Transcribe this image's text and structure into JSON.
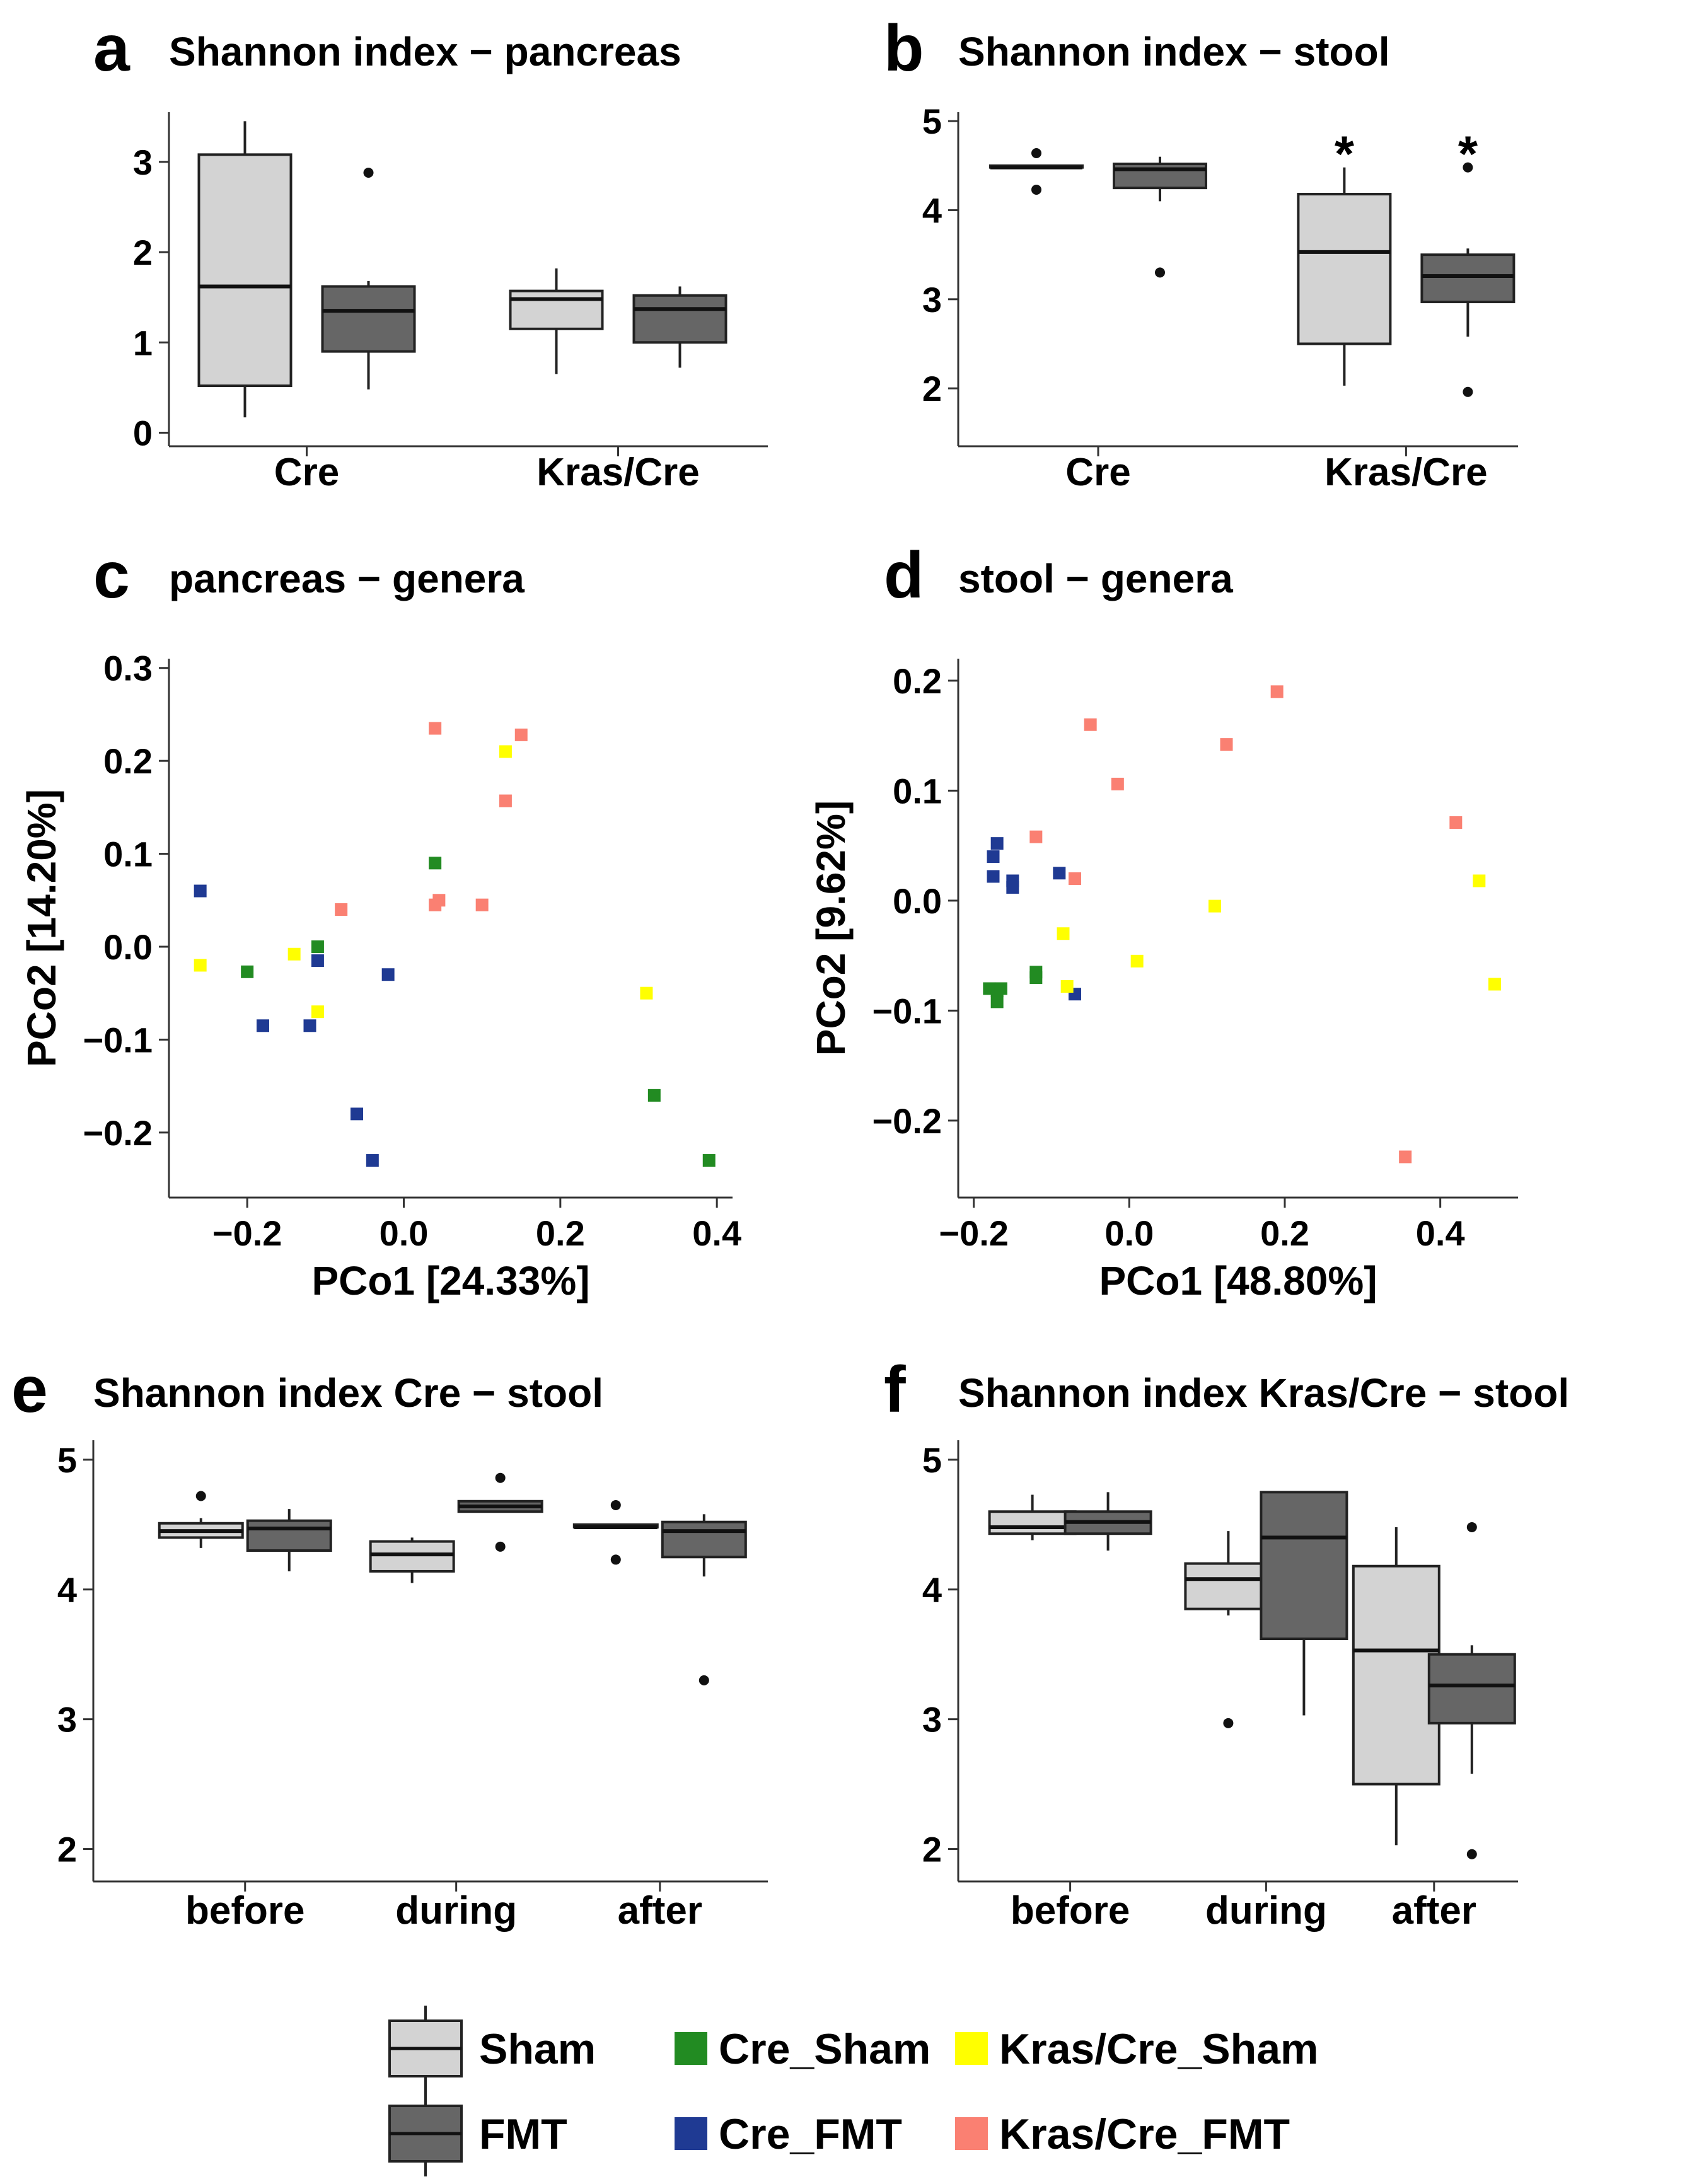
{
  "colors": {
    "sham_fill": "#d3d3d3",
    "fmt_fill": "#666666",
    "Cre_Sham": "#228b22",
    "Cre_FMT": "#1f3a93",
    "Kras/Cre_Sham": "#ffff00",
    "Kras/Cre_FMT": "#fa8072"
  },
  "legend": {
    "box_groups": [
      "Sham",
      "FMT"
    ],
    "point_groups": [
      "Cre_Sham",
      "Cre_FMT",
      "Kras/Cre_Sham",
      "Kras/Cre_FMT"
    ]
  },
  "chart_data": [
    {
      "id": "a",
      "panel_label": "a",
      "type": "boxplot",
      "title": "Shannon index − pancreas",
      "categories": [
        "Cre",
        "Kras/Cre"
      ],
      "ylim": [
        -0.15,
        3.55
      ],
      "yticks": [
        0,
        1,
        2,
        3
      ],
      "series": [
        {
          "name": "Sham",
          "boxes": [
            {
              "category": "Cre",
              "min": 0.17,
              "q1": 0.52,
              "median": 1.62,
              "q3": 3.08,
              "max": 3.45,
              "outliers": []
            },
            {
              "category": "Kras/Cre",
              "min": 0.65,
              "q1": 1.15,
              "median": 1.48,
              "q3": 1.57,
              "max": 1.82,
              "outliers": []
            }
          ]
        },
        {
          "name": "FMT",
          "boxes": [
            {
              "category": "Cre",
              "min": 0.48,
              "q1": 0.9,
              "median": 1.35,
              "q3": 1.62,
              "max": 1.68,
              "outliers": [
                2.88
              ]
            },
            {
              "category": "Kras/Cre",
              "min": 0.72,
              "q1": 1.0,
              "median": 1.37,
              "q3": 1.52,
              "max": 1.62,
              "outliers": []
            }
          ]
        }
      ],
      "annotations": []
    },
    {
      "id": "b",
      "panel_label": "b",
      "type": "boxplot",
      "title": "Shannon index − stool",
      "categories": [
        "Cre",
        "Kras/Cre"
      ],
      "ylim": [
        1.35,
        5.1
      ],
      "yticks": [
        2,
        3,
        4,
        5
      ],
      "series": [
        {
          "name": "Sham",
          "boxes": [
            {
              "category": "Cre",
              "min": 4.48,
              "q1": 4.48,
              "median": 4.48,
              "q3": 4.5,
              "max": 4.5,
              "outliers": [
                4.64,
                4.23
              ]
            },
            {
              "category": "Kras/Cre",
              "min": 2.03,
              "q1": 2.5,
              "median": 3.53,
              "q3": 4.18,
              "max": 4.48,
              "outliers": []
            }
          ]
        },
        {
          "name": "FMT",
          "boxes": [
            {
              "category": "Cre",
              "min": 4.1,
              "q1": 4.25,
              "median": 4.46,
              "q3": 4.52,
              "max": 4.6,
              "outliers": [
                3.3
              ]
            },
            {
              "category": "Kras/Cre",
              "min": 2.58,
              "q1": 2.97,
              "median": 3.26,
              "q3": 3.5,
              "max": 3.57,
              "outliers": [
                4.48,
                1.96
              ]
            }
          ]
        }
      ],
      "annotations": [
        {
          "category": "Kras/Cre",
          "group": "Sham",
          "text": "*",
          "value": 4.72
        },
        {
          "category": "Kras/Cre",
          "group": "FMT",
          "text": "*",
          "value": 4.72
        }
      ]
    },
    {
      "id": "c",
      "panel_label": "c",
      "type": "scatter",
      "title": "pancreas − genera",
      "xlabel": "PCo1 [24.33%]",
      "ylabel": "PCo2 [14.20%]",
      "xlim": [
        -0.3,
        0.42
      ],
      "ylim": [
        -0.27,
        0.31
      ],
      "xticks": [
        -0.2,
        0.0,
        0.2,
        0.4
      ],
      "yticks": [
        -0.2,
        -0.1,
        0.0,
        0.1,
        0.2,
        0.3
      ],
      "series": [
        {
          "name": "Cre_Sham",
          "points": [
            [
              0.04,
              0.09
            ],
            [
              -0.2,
              -0.027
            ],
            [
              -0.11,
              0.0
            ],
            [
              0.32,
              -0.16
            ],
            [
              0.39,
              -0.23
            ]
          ]
        },
        {
          "name": "Cre_FMT",
          "points": [
            [
              -0.26,
              0.06
            ],
            [
              -0.11,
              -0.015
            ],
            [
              -0.02,
              -0.03
            ],
            [
              -0.18,
              -0.085
            ],
            [
              -0.12,
              -0.085
            ],
            [
              -0.06,
              -0.18
            ],
            [
              -0.04,
              -0.23
            ]
          ]
        },
        {
          "name": "Kras/Cre_Sham",
          "points": [
            [
              -0.26,
              -0.02
            ],
            [
              -0.14,
              -0.008
            ],
            [
              -0.11,
              -0.07
            ],
            [
              0.13,
              0.21
            ],
            [
              0.31,
              -0.05
            ]
          ]
        },
        {
          "name": "Kras/Cre_FMT",
          "points": [
            [
              0.04,
              0.235
            ],
            [
              0.15,
              0.228
            ],
            [
              0.13,
              0.157
            ],
            [
              -0.08,
              0.04
            ],
            [
              0.045,
              0.05
            ],
            [
              0.04,
              0.045
            ],
            [
              0.1,
              0.045
            ]
          ]
        }
      ]
    },
    {
      "id": "d",
      "panel_label": "d",
      "type": "scatter",
      "title": "stool − genera",
      "xlabel": "PCo1 [48.80%]",
      "ylabel": "PCo2 [9.62%]",
      "xlim": [
        -0.22,
        0.5
      ],
      "ylim": [
        -0.27,
        0.22
      ],
      "xticks": [
        -0.2,
        0.0,
        0.2,
        0.4
      ],
      "yticks": [
        -0.2,
        -0.1,
        0.0,
        0.1,
        0.2
      ],
      "series": [
        {
          "name": "Cre_Sham",
          "points": [
            [
              -0.18,
              -0.08
            ],
            [
              -0.17,
              -0.082
            ],
            [
              -0.165,
              -0.08
            ],
            [
              -0.17,
              -0.092
            ],
            [
              -0.12,
              -0.065
            ],
            [
              -0.12,
              -0.07
            ]
          ]
        },
        {
          "name": "Cre_FMT",
          "points": [
            [
              -0.17,
              0.052
            ],
            [
              -0.175,
              0.04
            ],
            [
              -0.175,
              0.022
            ],
            [
              -0.15,
              0.018
            ],
            [
              -0.15,
              0.012
            ],
            [
              -0.09,
              0.025
            ],
            [
              -0.07,
              -0.085
            ]
          ]
        },
        {
          "name": "Kras/Cre_Sham",
          "points": [
            [
              -0.085,
              -0.03
            ],
            [
              -0.08,
              -0.078
            ],
            [
              0.01,
              -0.055
            ],
            [
              0.11,
              -0.005
            ],
            [
              0.45,
              0.018
            ],
            [
              0.47,
              -0.076
            ]
          ]
        },
        {
          "name": "Kras/Cre_FMT",
          "points": [
            [
              -0.12,
              0.058
            ],
            [
              -0.07,
              0.02
            ],
            [
              -0.05,
              0.16
            ],
            [
              -0.015,
              0.106
            ],
            [
              0.125,
              0.142
            ],
            [
              0.19,
              0.19
            ],
            [
              0.42,
              0.071
            ],
            [
              0.355,
              -0.233
            ]
          ]
        }
      ]
    },
    {
      "id": "e",
      "panel_label": "e",
      "type": "boxplot",
      "title": "Shannon index Cre − stool",
      "categories": [
        "before",
        "during",
        "after"
      ],
      "ylim": [
        1.75,
        5.15
      ],
      "yticks": [
        2,
        3,
        4,
        5
      ],
      "series": [
        {
          "name": "Sham",
          "boxes": [
            {
              "category": "before",
              "min": 4.32,
              "q1": 4.4,
              "median": 4.45,
              "q3": 4.51,
              "max": 4.55,
              "outliers": [
                4.72
              ]
            },
            {
              "category": "during",
              "min": 4.05,
              "q1": 4.14,
              "median": 4.27,
              "q3": 4.37,
              "max": 4.4,
              "outliers": []
            },
            {
              "category": "after",
              "min": 4.48,
              "q1": 4.48,
              "median": 4.48,
              "q3": 4.5,
              "max": 4.5,
              "outliers": [
                4.65,
                4.23
              ]
            }
          ]
        },
        {
          "name": "FMT",
          "boxes": [
            {
              "category": "before",
              "min": 4.14,
              "q1": 4.3,
              "median": 4.47,
              "q3": 4.53,
              "max": 4.62,
              "outliers": []
            },
            {
              "category": "during",
              "min": 4.6,
              "q1": 4.6,
              "median": 4.64,
              "q3": 4.68,
              "max": 4.68,
              "outliers": [
                4.86,
                4.33
              ]
            },
            {
              "category": "after",
              "min": 4.1,
              "q1": 4.25,
              "median": 4.45,
              "q3": 4.52,
              "max": 4.58,
              "outliers": [
                3.3
              ]
            }
          ]
        }
      ],
      "annotations": []
    },
    {
      "id": "f",
      "panel_label": "f",
      "type": "boxplot",
      "title": "Shannon index Kras/Cre − stool",
      "categories": [
        "before",
        "during",
        "after"
      ],
      "ylim": [
        1.75,
        5.15
      ],
      "yticks": [
        2,
        3,
        4,
        5
      ],
      "series": [
        {
          "name": "Sham",
          "boxes": [
            {
              "category": "before",
              "min": 4.38,
              "q1": 4.43,
              "median": 4.48,
              "q3": 4.6,
              "max": 4.73,
              "outliers": []
            },
            {
              "category": "during",
              "min": 3.8,
              "q1": 3.85,
              "median": 4.08,
              "q3": 4.2,
              "max": 4.45,
              "outliers": [
                2.97
              ]
            },
            {
              "category": "after",
              "min": 2.03,
              "q1": 2.5,
              "median": 3.53,
              "q3": 4.18,
              "max": 4.48,
              "outliers": []
            }
          ]
        },
        {
          "name": "FMT",
          "boxes": [
            {
              "category": "before",
              "min": 4.3,
              "q1": 4.43,
              "median": 4.52,
              "q3": 4.6,
              "max": 4.75,
              "outliers": []
            },
            {
              "category": "during",
              "min": 3.03,
              "q1": 3.62,
              "median": 4.4,
              "q3": 4.75,
              "max": 4.75,
              "outliers": []
            },
            {
              "category": "after",
              "min": 2.58,
              "q1": 2.97,
              "median": 3.26,
              "q3": 3.5,
              "max": 3.57,
              "outliers": [
                4.48,
                1.96
              ]
            }
          ]
        }
      ],
      "annotations": []
    }
  ]
}
